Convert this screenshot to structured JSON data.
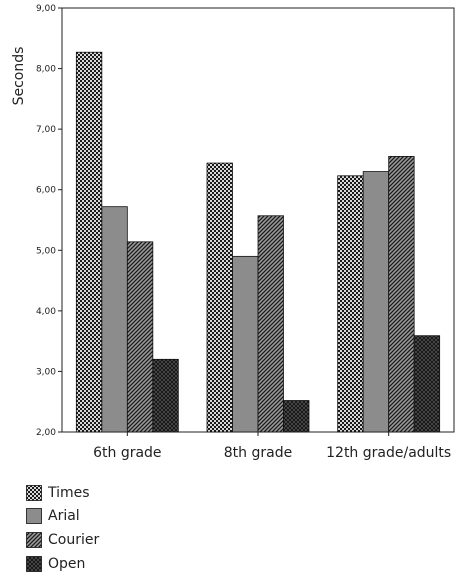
{
  "chart_data": {
    "type": "bar",
    "categories": [
      "6th grade",
      "8th grade",
      "12th grade/adults"
    ],
    "series": [
      {
        "name": "Times",
        "values": [
          8.27,
          6.44,
          6.23
        ],
        "pattern": "checker"
      },
      {
        "name": "Arial",
        "values": [
          5.72,
          4.9,
          6.3
        ],
        "pattern": "solid"
      },
      {
        "name": "Courier",
        "values": [
          5.14,
          5.57,
          6.55
        ],
        "pattern": "diagonal"
      },
      {
        "name": "Open",
        "values": [
          3.2,
          2.52,
          3.59
        ],
        "pattern": "crosshatch"
      }
    ],
    "title": "",
    "xlabel": "",
    "ylabel": "Seconds",
    "ylim": [
      2.0,
      9.0
    ],
    "yticks": [
      2,
      3,
      4,
      5,
      6,
      7,
      8,
      9
    ],
    "ytick_labels": [
      "2,00",
      "3,00",
      "4,00",
      "5,00",
      "6,00",
      "7,00",
      "8,00",
      "9,00"
    ],
    "grid": false,
    "legend_position": "bottom-left",
    "colors": {
      "bar_fill": "#8c8c8c",
      "bar_dark": "#1a1a1a",
      "axis": "#222222",
      "background": "#ffffff"
    }
  }
}
